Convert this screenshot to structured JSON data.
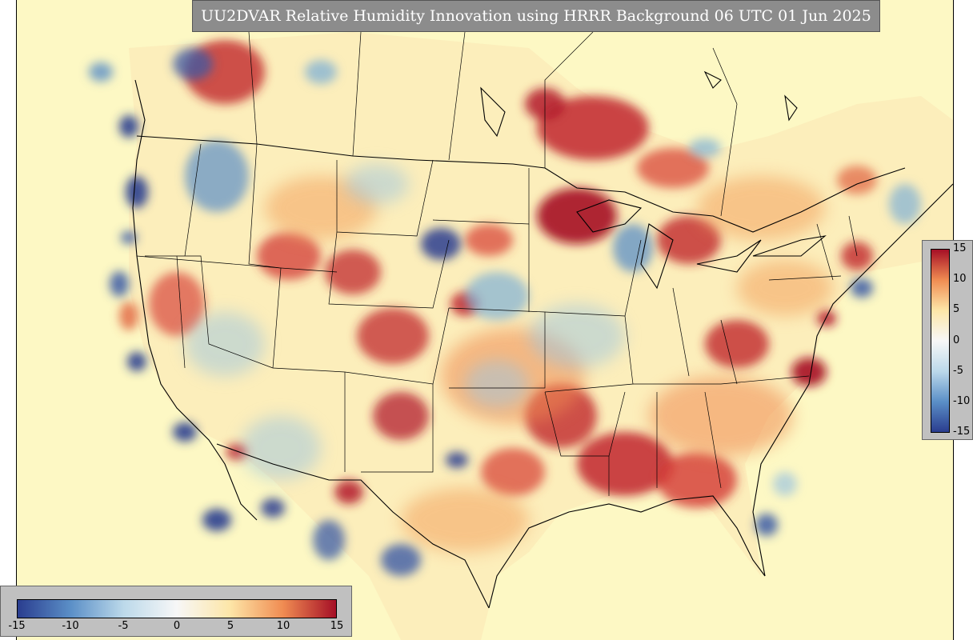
{
  "title": "UU2DVAR Relative Humidity Innovation using HRRR Background 06 UTC 01 Jun 2025",
  "colorbar": {
    "min": -15,
    "max": 15,
    "vertical_ticks": [
      "15",
      "10",
      "5",
      "0",
      "-5",
      "-10",
      "-15"
    ],
    "horizontal_ticks": [
      "-15",
      "-10",
      "-5",
      "0",
      "5",
      "10",
      "15"
    ],
    "colors": {
      "neg_max": "#2a3d8f",
      "neg_mid": "#5b8fc7",
      "neg_low": "#bcd9ea",
      "zero": "#f7f7f7",
      "pos_low": "#fde6a8",
      "pos_mid": "#f08c52",
      "pos_max": "#a50f26"
    }
  },
  "map": {
    "background": "#fdf8c4",
    "projection_note": "CONUS"
  }
}
